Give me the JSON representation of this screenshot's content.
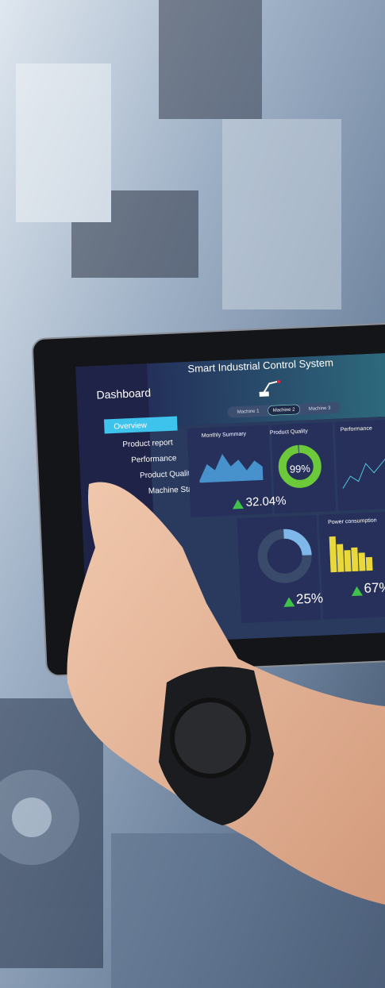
{
  "header": {
    "title": "Smart Industrial Control System"
  },
  "sidebar": {
    "title": "Dashboard",
    "items": [
      "Overview",
      "Product report",
      "Performance",
      "Product Quality",
      "Machine State"
    ]
  },
  "tabs": [
    "Machine 1",
    "Machine 2",
    "Machine 3"
  ],
  "panels": {
    "monthly_summary": {
      "title": "Monthly Summary",
      "value": "32.04%"
    },
    "product_quality": {
      "title": "Product Quality",
      "value": 99,
      "label": "99%"
    },
    "performance": {
      "title": "Performance"
    },
    "ring": {
      "value": 25,
      "label": "25%"
    },
    "power_consumption": {
      "title": "Power consumption",
      "value": "67%"
    }
  }
}
